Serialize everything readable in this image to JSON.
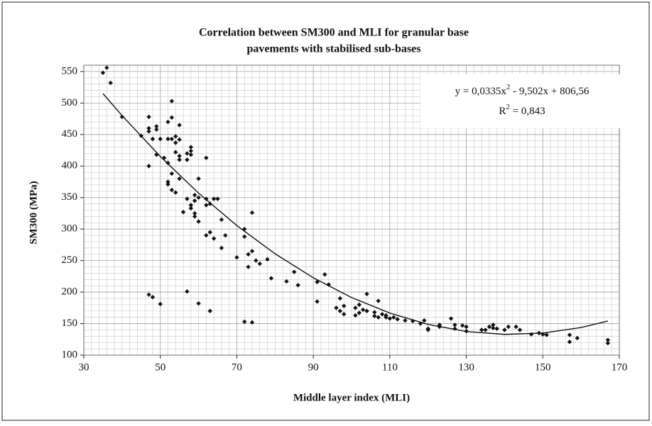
{
  "chart_data": {
    "type": "scatter",
    "title": [
      "Correlation between SM300 and MLI for granular base",
      "pavements with stabilised sub-bases"
    ],
    "x_label": "Middle layer index  (MLI)",
    "y_label": "SM300  (MPa)",
    "equation": [
      "y = 0,0335x",
      "2",
      " - 9,502x + 806,56"
    ],
    "r_squared": [
      "R",
      "2",
      " = 0,843"
    ],
    "xlim": [
      30,
      170
    ],
    "xticks": [
      30,
      50,
      70,
      90,
      110,
      130,
      150,
      170
    ],
    "ylim": [
      100,
      560
    ],
    "yticks": [
      100,
      150,
      200,
      250,
      300,
      350,
      400,
      450,
      500,
      550
    ],
    "grid": true,
    "series": [
      {
        "color": "#111111",
        "x": [
          35,
          36,
          37,
          40,
          45,
          47,
          47,
          47,
          47,
          48,
          49,
          49,
          49,
          50,
          51,
          52,
          52,
          52,
          52,
          52,
          53,
          53,
          53,
          53,
          53,
          54,
          54,
          54,
          54,
          55,
          55,
          55,
          55,
          55,
          56,
          57,
          57,
          57,
          58,
          58,
          58,
          58,
          58,
          59,
          59,
          59,
          59,
          60,
          60,
          60,
          62,
          62,
          62,
          62,
          63,
          63,
          64,
          64,
          65,
          66,
          66,
          67,
          70,
          72,
          72,
          73,
          73,
          74,
          74,
          75,
          76,
          78,
          79,
          83,
          85,
          86,
          91,
          91,
          93,
          94,
          96,
          97,
          97,
          98,
          98,
          101,
          101,
          102,
          102,
          103,
          104,
          104,
          106,
          106,
          107,
          107,
          108,
          109,
          109,
          110,
          111,
          112,
          114,
          116,
          118,
          119,
          120,
          120,
          123,
          123,
          126,
          127,
          127,
          129,
          130,
          130,
          134,
          135,
          136,
          137,
          137,
          138,
          140,
          141,
          143,
          144,
          147,
          149,
          150,
          151,
          157,
          157,
          159,
          167,
          167,
          47,
          48,
          50,
          57,
          60,
          63,
          72,
          74
        ],
        "values": [
          548,
          556,
          532,
          478,
          448,
          478,
          460,
          455,
          400,
          443,
          463,
          458,
          418,
          443,
          413,
          375,
          371,
          405,
          470,
          443,
          503,
          443,
          477,
          388,
          362,
          447,
          437,
          422,
          358,
          442,
          416,
          410,
          380,
          465,
          327,
          420,
          410,
          348,
          430,
          424,
          418,
          338,
          333,
          354,
          345,
          325,
          320,
          380,
          350,
          312,
          413,
          348,
          338,
          290,
          295,
          340,
          348,
          285,
          348,
          315,
          270,
          290,
          255,
          300,
          288,
          260,
          240,
          326,
          265,
          250,
          245,
          252,
          222,
          217,
          232,
          211,
          185,
          216,
          228,
          212,
          175,
          190,
          170,
          178,
          165,
          175,
          163,
          167,
          180,
          172,
          197,
          170,
          162,
          168,
          186,
          160,
          165,
          163,
          160,
          158,
          160,
          157,
          155,
          154,
          150,
          155,
          142,
          140,
          148,
          145,
          158,
          148,
          142,
          147,
          145,
          138,
          140,
          140,
          145,
          148,
          143,
          142,
          140,
          145,
          145,
          140,
          133,
          135,
          133,
          132,
          132,
          121,
          127,
          124,
          119,
          196,
          192,
          181,
          201,
          182,
          170,
          153,
          152
        ]
      },
      {
        "type": "line",
        "color": "#111111",
        "x": [
          35,
          40,
          50,
          60,
          70,
          80,
          90,
          100,
          110,
          120,
          130,
          140,
          150,
          160,
          167
        ],
        "values": [
          515,
          480.1,
          415.2,
          357,
          305.6,
          260.8,
          222.7,
          191.4,
          166.7,
          148.7,
          137.5,
          132.9,
          135,
          143.8,
          154.1
        ]
      }
    ]
  }
}
